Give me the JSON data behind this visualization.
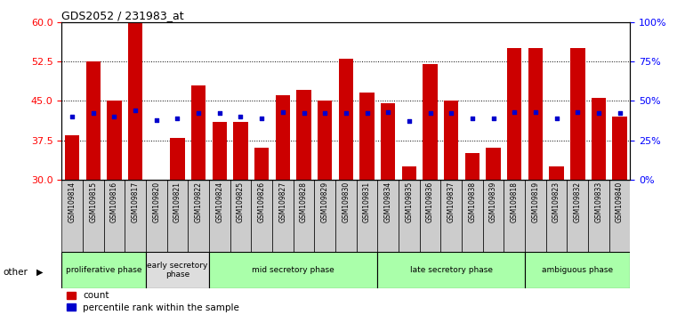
{
  "title": "GDS2052 / 231983_at",
  "samples": [
    "GSM109814",
    "GSM109815",
    "GSM109816",
    "GSM109817",
    "GSM109820",
    "GSM109821",
    "GSM109822",
    "GSM109824",
    "GSM109825",
    "GSM109826",
    "GSM109827",
    "GSM109828",
    "GSM109829",
    "GSM109830",
    "GSM109831",
    "GSM109834",
    "GSM109835",
    "GSM109836",
    "GSM109837",
    "GSM109838",
    "GSM109839",
    "GSM109818",
    "GSM109819",
    "GSM109823",
    "GSM109832",
    "GSM109833",
    "GSM109840"
  ],
  "count_values": [
    38.5,
    52.5,
    45.0,
    60.0,
    30.0,
    38.0,
    48.0,
    41.0,
    41.0,
    36.0,
    46.0,
    47.0,
    45.0,
    53.0,
    46.5,
    44.5,
    32.5,
    52.0,
    45.0,
    35.0,
    36.0,
    55.0,
    55.0,
    32.5,
    55.0,
    45.5,
    42.0
  ],
  "percentile_right": [
    40,
    42,
    40,
    44,
    38,
    39,
    42,
    42,
    40,
    39,
    43,
    42,
    42,
    42,
    42,
    43,
    37,
    42,
    42,
    39,
    39,
    43,
    43,
    39,
    43,
    42,
    42
  ],
  "phases": [
    {
      "label": "proliferative phase",
      "start": 0,
      "end": 3,
      "color": "#aaffaa"
    },
    {
      "label": "early secretory\nphase",
      "start": 4,
      "end": 6,
      "color": "#dddddd"
    },
    {
      "label": "mid secretory phase",
      "start": 7,
      "end": 14,
      "color": "#aaffaa"
    },
    {
      "label": "late secretory phase",
      "start": 15,
      "end": 21,
      "color": "#aaffaa"
    },
    {
      "label": "ambiguous phase",
      "start": 22,
      "end": 26,
      "color": "#aaffaa"
    }
  ],
  "ylim_left": [
    30,
    60
  ],
  "ylim_right": [
    0,
    100
  ],
  "yticks_left": [
    30,
    37.5,
    45,
    52.5,
    60
  ],
  "yticks_right": [
    0,
    25,
    50,
    75,
    100
  ],
  "bar_color": "#cc0000",
  "dot_color": "#0000cc",
  "tick_bg_color": "#cccccc"
}
